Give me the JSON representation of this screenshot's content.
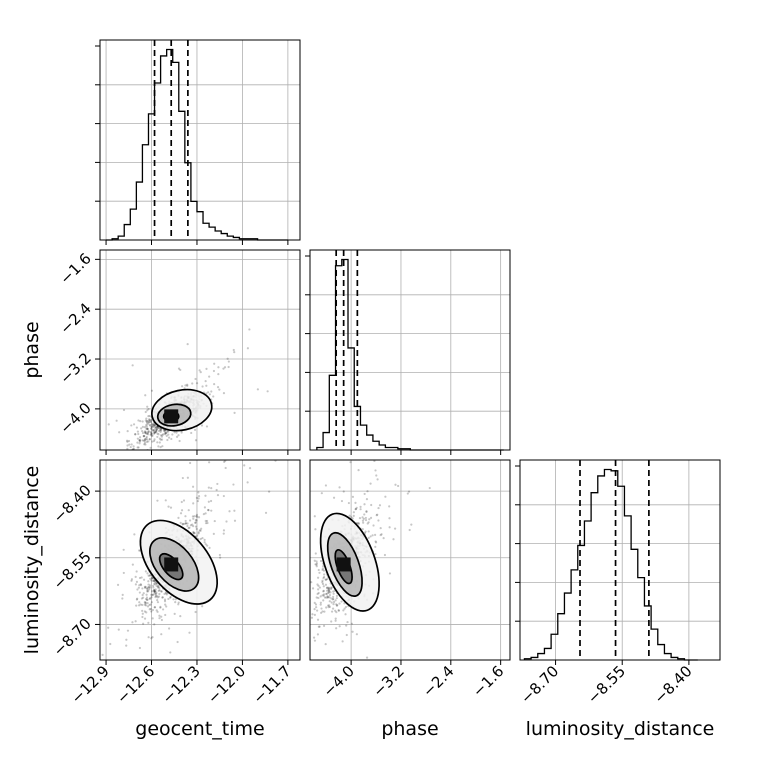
{
  "chart_data": {
    "type": "corner",
    "parameters": [
      "geocent_time",
      "phase",
      "luminosity_distance"
    ],
    "xlabels": [
      "geocent_time",
      "phase",
      "luminosity_distance"
    ],
    "ylabels": [
      "",
      "phase",
      "luminosity_distance"
    ],
    "ranges": {
      "geocent_time": [
        -12.94,
        -11.62
      ],
      "phase": [
        -4.66,
        -1.45
      ],
      "luminosity_distance": [
        -8.78,
        -8.33
      ]
    },
    "ticks": {
      "geocent_time": [
        -12.9,
        -12.6,
        -12.3,
        -12.0,
        -11.7
      ],
      "phase": [
        -4.0,
        -3.2,
        -2.4,
        -1.6
      ],
      "luminosity_distance": [
        -8.7,
        -8.55,
        -8.4
      ]
    },
    "tick_labels": {
      "geocent_time": [
        "−12.9",
        "−12.6",
        "−12.3",
        "−12.0",
        "−11.7"
      ],
      "phase": [
        "−4.0",
        "−3.2",
        "−2.4",
        "−1.6"
      ],
      "luminosity_distance": [
        "−8.70",
        "−8.55",
        "−8.40"
      ]
    },
    "quantiles": {
      "geocent_time": [
        -12.58,
        -12.47,
        -12.36
      ],
      "phase": [
        -4.24,
        -4.12,
        -3.9
      ],
      "luminosity_distance": [
        -8.645,
        -8.565,
        -8.49
      ]
    },
    "histograms": {
      "geocent_time": {
        "bins": [
          -12.9,
          -12.86,
          -12.82,
          -12.78,
          -12.74,
          -12.7,
          -12.66,
          -12.62,
          -12.58,
          -12.54,
          -12.5,
          -12.46,
          -12.42,
          -12.38,
          -12.34,
          -12.3,
          -12.26,
          -12.22,
          -12.18,
          -12.14,
          -12.1,
          -12.06,
          -12.02,
          -11.98,
          -11.94,
          -11.9,
          -11.86,
          -11.82,
          -11.78,
          -11.74,
          -11.7
        ],
        "counts": [
          0,
          1,
          3,
          12,
          24,
          45,
          74,
          98,
          122,
          143,
          148,
          138,
          100,
          60,
          30,
          22,
          13,
          10,
          7,
          5,
          3,
          2,
          1,
          1,
          1,
          0,
          0,
          0,
          0,
          0
        ]
      },
      "phase": {
        "bins": [
          -4.55,
          -4.45,
          -4.35,
          -4.25,
          -4.15,
          -4.05,
          -3.95,
          -3.85,
          -3.75,
          -3.65,
          -3.55,
          -3.45,
          -3.35,
          -3.25,
          -3.15,
          -3.05,
          -2.95,
          -2.85,
          -2.75,
          -2.65,
          -2.55,
          -2.45,
          -2.35,
          -2.25,
          -2.15,
          -2.05,
          -1.95,
          -1.85,
          -1.75,
          -1.65,
          -1.55
        ],
        "counts": [
          2,
          14,
          60,
          148,
          153,
          82,
          35,
          20,
          12,
          7,
          4,
          2,
          2,
          1,
          1,
          0,
          0,
          0,
          0,
          0,
          0,
          0,
          0,
          0,
          0,
          0,
          0,
          0,
          0,
          0
        ]
      },
      "luminosity_distance": {
        "bins": [
          -8.77,
          -8.755,
          -8.74,
          -8.725,
          -8.71,
          -8.695,
          -8.68,
          -8.665,
          -8.65,
          -8.635,
          -8.62,
          -8.605,
          -8.59,
          -8.575,
          -8.56,
          -8.545,
          -8.53,
          -8.515,
          -8.5,
          -8.485,
          -8.47,
          -8.455,
          -8.44,
          -8.425,
          -8.41,
          -8.395,
          -8.38
        ],
        "counts": [
          1,
          2,
          5,
          9,
          20,
          36,
          52,
          70,
          89,
          108,
          130,
          143,
          148,
          147,
          135,
          112,
          86,
          64,
          42,
          24,
          12,
          5,
          2,
          1,
          0,
          0
        ]
      }
    },
    "scatter": [
      {
        "x": "geocent_time",
        "y": "phase",
        "mean": [
          -12.47,
          -4.12
        ],
        "sd": [
          0.1,
          0.2
        ],
        "corr": 0.75,
        "contours": [
          [
            -12.47,
            -4.12,
            0.05,
            0.08,
            0
          ],
          [
            -12.45,
            -4.1,
            0.11,
            0.17,
            10
          ],
          [
            -12.4,
            -4.02,
            0.2,
            0.32,
            12
          ]
        ]
      },
      {
        "x": "geocent_time",
        "y": "luminosity_distance",
        "mean": [
          -12.47,
          -8.565
        ],
        "sd": [
          0.1,
          0.05
        ],
        "corr": 0.7,
        "contours": [
          [
            -12.47,
            -8.57,
            0.05,
            0.035,
            40
          ],
          [
            -12.45,
            -8.565,
            0.12,
            0.07,
            40
          ],
          [
            -12.42,
            -8.56,
            0.19,
            0.11,
            40
          ]
        ]
      },
      {
        "x": "phase",
        "y": "luminosity_distance",
        "mean": [
          -4.12,
          -8.565
        ],
        "sd": [
          0.2,
          0.05
        ],
        "corr": 0.55,
        "contours": [
          [
            -4.12,
            -8.57,
            0.1,
            0.04,
            20
          ],
          [
            -4.1,
            -8.565,
            0.22,
            0.075,
            20
          ],
          [
            -4.02,
            -8.56,
            0.4,
            0.115,
            20
          ]
        ]
      }
    ]
  }
}
